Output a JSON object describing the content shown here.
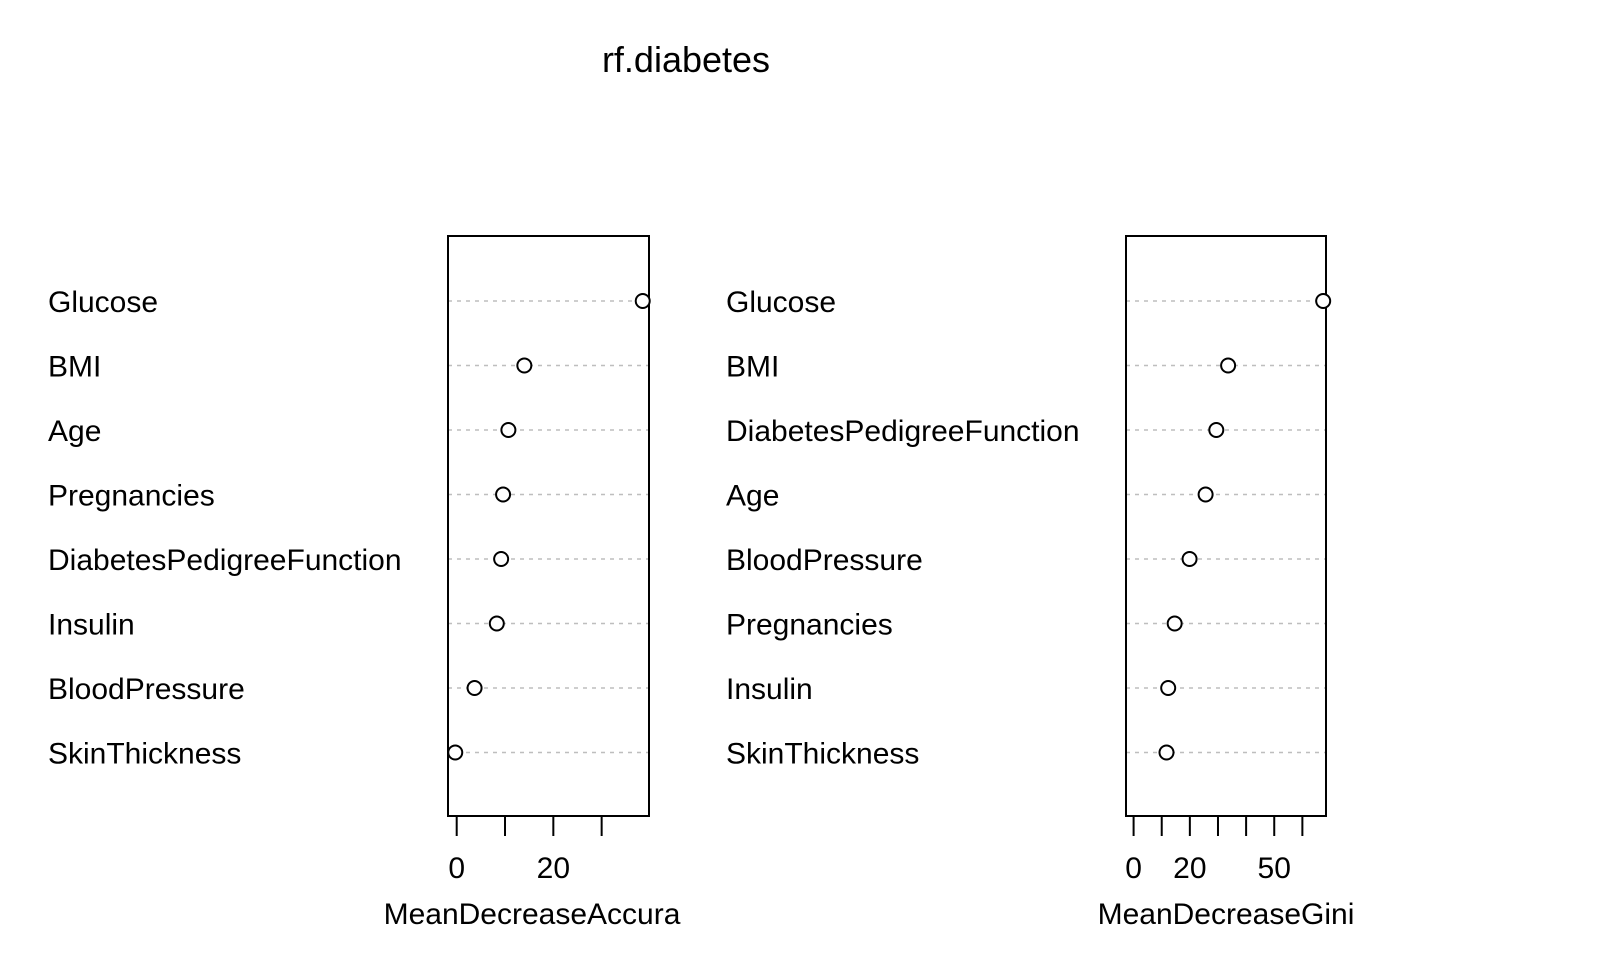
{
  "title": "rf.diabetes",
  "chart_data": [
    {
      "type": "scatter",
      "variant": "dotchart",
      "xlabel": "MeanDecreaseAccuracy",
      "xlabel_visible": "MeanDecreaseAccura",
      "ylabel": "",
      "categories": [
        "Glucose",
        "BMI",
        "Age",
        "Pregnancies",
        "DiabetesPedigreeFunction",
        "Insulin",
        "BloodPressure",
        "SkinThickness"
      ],
      "values": [
        38.5,
        14,
        10.7,
        9.6,
        9.2,
        8.3,
        3.7,
        -0.3
      ],
      "xlim": [
        -1.8,
        39.8
      ],
      "xticks": [
        0,
        10,
        20,
        30
      ],
      "xtick_labels": [
        "0",
        "",
        "20",
        ""
      ],
      "grid": "dotted horizontal guide lines"
    },
    {
      "type": "scatter",
      "variant": "dotchart",
      "xlabel": "MeanDecreaseGini",
      "xlabel_visible": "MeanDecreaseGini",
      "ylabel": "",
      "categories": [
        "Glucose",
        "BMI",
        "DiabetesPedigreeFunction",
        "Age",
        "BloodPressure",
        "Pregnancies",
        "Insulin",
        "SkinThickness"
      ],
      "values": [
        67.4,
        33.6,
        29.4,
        25.6,
        19.9,
        14.6,
        12.3,
        11.7
      ],
      "xlim": [
        -2.7,
        68.4
      ],
      "xticks": [
        0,
        10,
        20,
        30,
        40,
        50,
        60
      ],
      "xtick_labels": [
        "0",
        "",
        "20",
        "",
        "",
        "50",
        ""
      ],
      "grid": "dotted horizontal guide lines"
    }
  ]
}
